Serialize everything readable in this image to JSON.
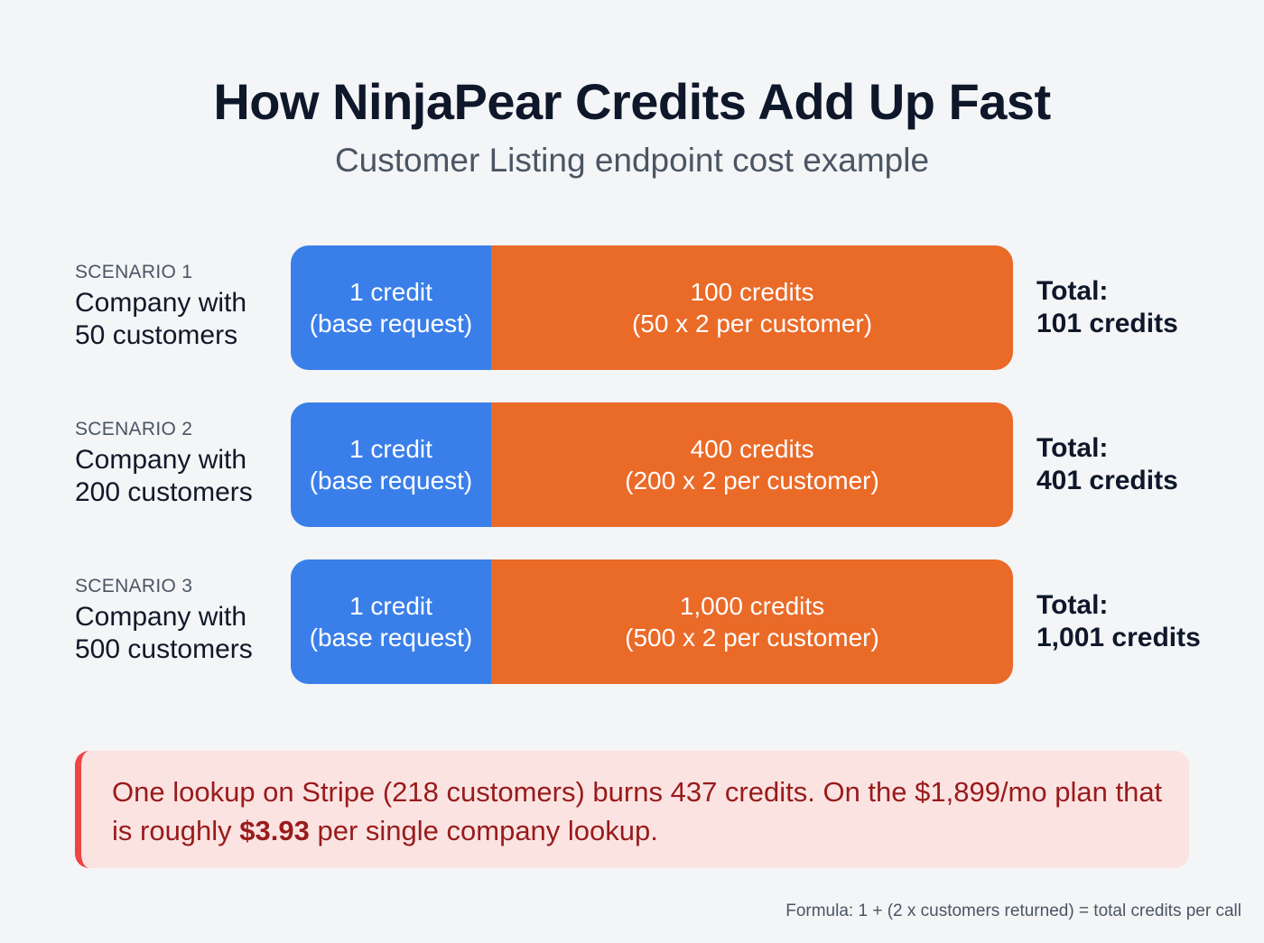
{
  "header": {
    "title": "How NinjaPear Credits Add Up Fast",
    "subtitle": "Customer Listing endpoint cost example"
  },
  "scenarios": [
    {
      "label": "SCENARIO 1",
      "company_line1": "Company with",
      "company_line2": "50 customers",
      "base_line1": "1 credit",
      "base_line2": "(base request)",
      "extra_line1": "100 credits",
      "extra_line2": "(50 x 2 per customer)",
      "total_label": "Total:",
      "total_value": "101 credits"
    },
    {
      "label": "SCENARIO 2",
      "company_line1": "Company with",
      "company_line2": "200 customers",
      "base_line1": "1 credit",
      "base_line2": "(base request)",
      "extra_line1": "400 credits",
      "extra_line2": "(200 x 2 per customer)",
      "total_label": "Total:",
      "total_value": "401 credits"
    },
    {
      "label": "SCENARIO 3",
      "company_line1": "Company with",
      "company_line2": "500 customers",
      "base_line1": "1 credit",
      "base_line2": "(base request)",
      "extra_line1": "1,000 credits",
      "extra_line2": "(500 x 2 per customer)",
      "total_label": "Total:",
      "total_value": "1,001 credits"
    }
  ],
  "callout": {
    "text_before": "One lookup on Stripe (218 customers) burns 437 credits. On the $1,899/mo plan that is roughly ",
    "highlight": "$3.93",
    "text_after": " per single company lookup."
  },
  "footer": {
    "formula": "Formula: 1 + (2 x customers returned) = total credits per call"
  },
  "colors": {
    "base": "#3a7fe9",
    "extra": "#ea6a28",
    "callout_bg": "#fbe3e2",
    "callout_accent": "#ef4444",
    "callout_text": "#991b1b"
  }
}
